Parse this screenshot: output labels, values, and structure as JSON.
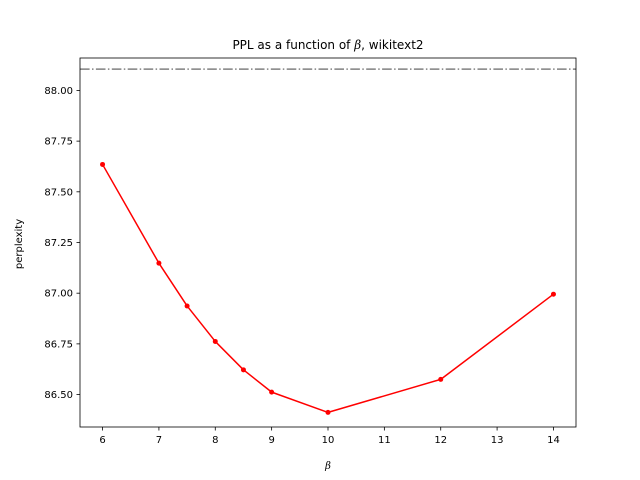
{
  "chart_data": {
    "type": "line",
    "title": "PPL as a function of ",
    "title_symbol": "β",
    "title_suffix": ", wikitext2",
    "xlabel": "β",
    "ylabel": "perplexity",
    "xlim": [
      5.6,
      14.4
    ],
    "ylim": [
      86.34,
      88.16
    ],
    "xticks": [
      6,
      7,
      8,
      9,
      10,
      11,
      12,
      13,
      14
    ],
    "yticks": [
      86.5,
      86.75,
      87.0,
      87.25,
      87.5,
      87.75,
      88.0
    ],
    "ytick_labels": [
      "86.50",
      "86.75",
      "87.00",
      "87.25",
      "87.50",
      "87.75",
      "88.00"
    ],
    "grid": false,
    "series": [
      {
        "color": "#ff0000",
        "marker": "circle",
        "x": [
          6,
          7,
          7.5,
          8,
          8.5,
          9,
          10,
          12,
          14
        ],
        "y": [
          87.635,
          87.148,
          86.937,
          86.762,
          86.622,
          86.512,
          86.412,
          86.575,
          86.995
        ]
      }
    ],
    "reference_line": {
      "y": 88.105,
      "color": "#808080",
      "style": "dash-dot"
    }
  }
}
